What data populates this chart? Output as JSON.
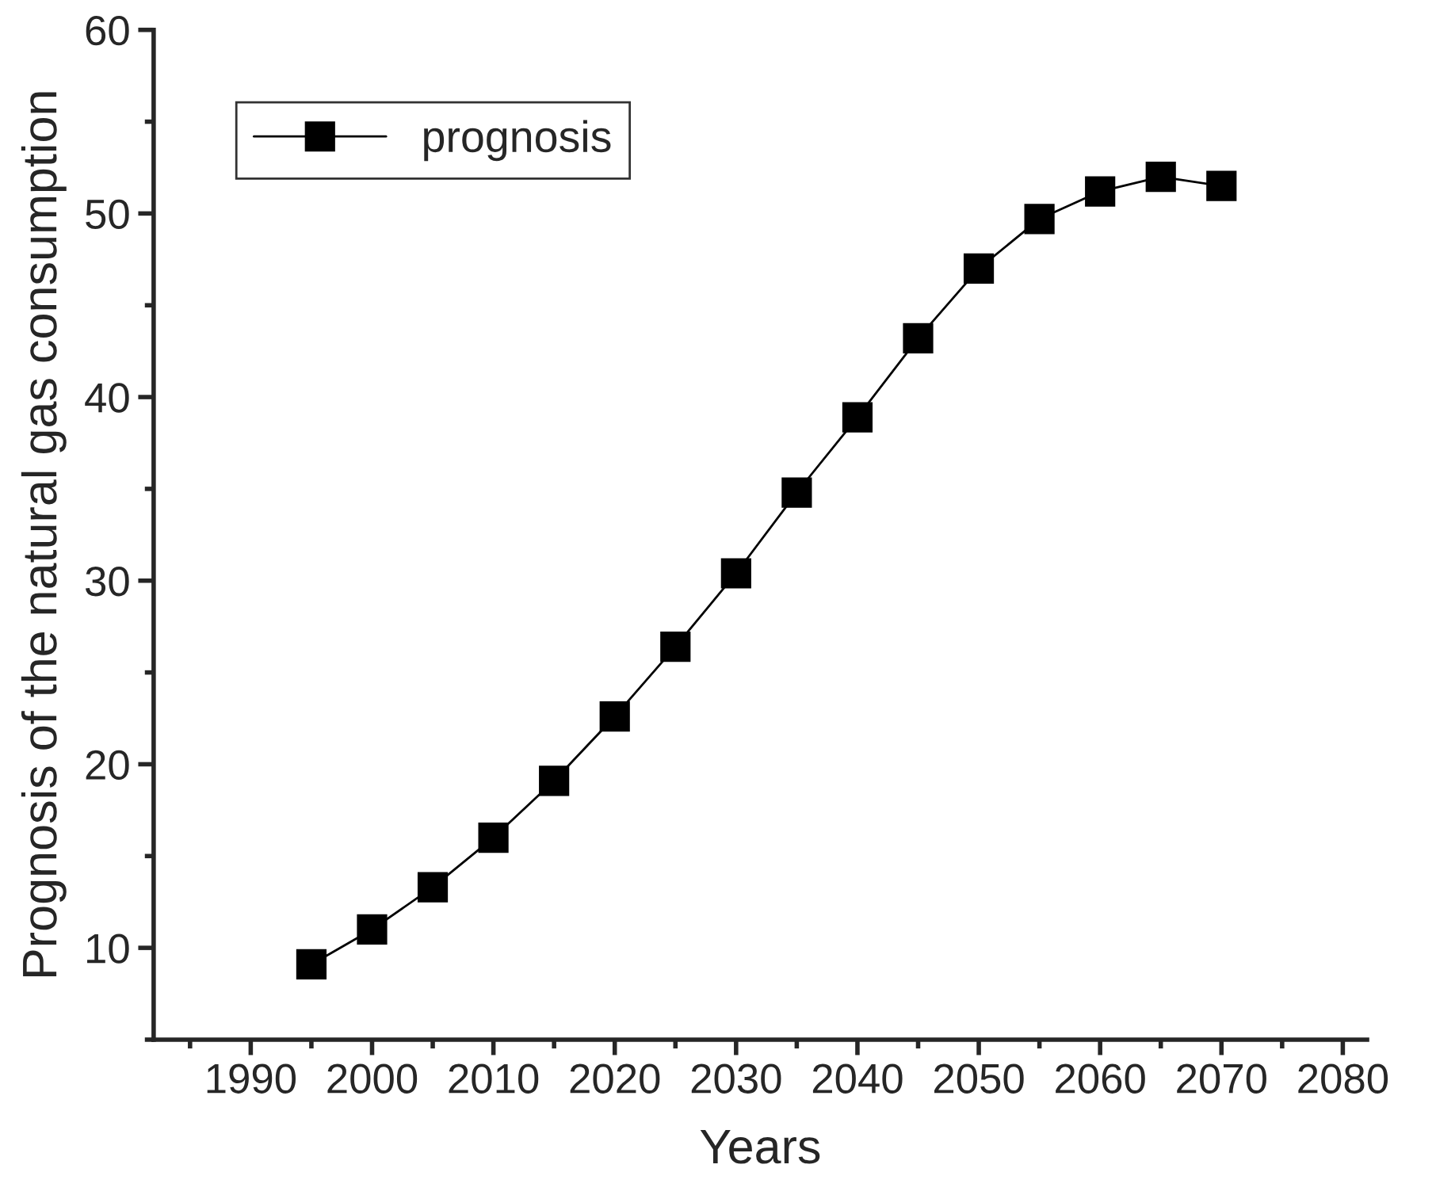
{
  "chart_data": {
    "type": "line",
    "xlabel": "Years",
    "ylabel": "Prognosis of the natural gas consumption",
    "x": [
      1995,
      2000,
      2005,
      2010,
      2015,
      2020,
      2025,
      2030,
      2035,
      2040,
      2045,
      2050,
      2055,
      2060,
      2065,
      2070
    ],
    "series": [
      {
        "name": "prognosis",
        "color": "#000000",
        "values": [
          9.1,
          11.0,
          13.3,
          16.0,
          19.1,
          22.6,
          26.4,
          30.4,
          34.8,
          38.9,
          43.2,
          47.0,
          49.7,
          51.2,
          52.0,
          51.5
        ]
      }
    ],
    "xlim": [
      1982,
      2082
    ],
    "xticks": [
      1990,
      2000,
      2010,
      2020,
      2030,
      2040,
      2050,
      2060,
      2070,
      2080
    ],
    "ylim": [
      5,
      60
    ],
    "yticks": [
      10,
      20,
      30,
      40,
      50,
      60
    ],
    "marker": "square",
    "line_style": "solid",
    "legend": "top left",
    "grid": false
  }
}
